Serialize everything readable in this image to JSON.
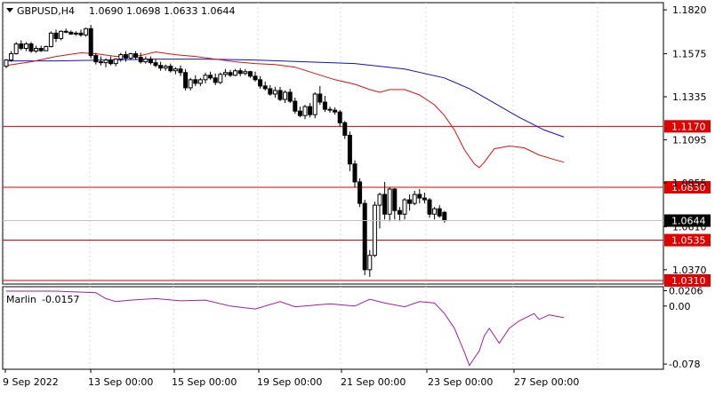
{
  "header": {
    "symbol": "GBPUSD,H4",
    "ohlc": "1.0690 1.0698 1.0633 1.0644"
  },
  "price_axis": {
    "ticks": [
      "1.1820",
      "1.1575",
      "1.1335",
      "1.1095",
      "1.0855",
      "1.0610",
      "1.0370"
    ],
    "current_price": "1.0644",
    "levels": [
      {
        "label": "1.1170",
        "value": 1.117
      },
      {
        "label": "1.0830",
        "value": 1.083
      },
      {
        "label": "1.0535",
        "value": 1.0535
      },
      {
        "label": "1.0310",
        "value": 1.031
      }
    ]
  },
  "indicator": {
    "name": "Marlin",
    "value": "-0.0157",
    "ticks": [
      "0.0206",
      "0.00",
      "-0.078"
    ]
  },
  "time_axis": {
    "labels": [
      "9 Sep 2022",
      "13 Sep 00:00",
      "15 Sep 00:00",
      "19 Sep 00:00",
      "21 Sep 00:00",
      "23 Sep 00:00",
      "27 Sep 00:00"
    ]
  },
  "colors": {
    "level_line": "#e00000",
    "fast_ma": "#e01010",
    "slow_ma": "#1010d0",
    "oscillator": "#a020a0",
    "grid": "#d8d8d8"
  },
  "chart_data": {
    "type": "candlestick",
    "ylim": [
      1.029,
      1.186
    ],
    "candles": [
      [
        1.1505,
        1.1545,
        1.1495,
        1.154
      ],
      [
        1.154,
        1.159,
        1.153,
        1.1575
      ],
      [
        1.1575,
        1.164,
        1.157,
        1.163
      ],
      [
        1.163,
        1.165,
        1.1595,
        1.1605
      ],
      [
        1.1605,
        1.164,
        1.159,
        1.163
      ],
      [
        1.163,
        1.164,
        1.158,
        1.159
      ],
      [
        1.159,
        1.162,
        1.158,
        1.1605
      ],
      [
        1.1605,
        1.162,
        1.1585,
        1.1592
      ],
      [
        1.1592,
        1.162,
        1.159,
        1.1615
      ],
      [
        1.1615,
        1.17,
        1.161,
        1.169
      ],
      [
        1.169,
        1.171,
        1.164,
        1.166
      ],
      [
        1.166,
        1.1705,
        1.165,
        1.17
      ],
      [
        1.17,
        1.1715,
        1.169,
        1.1695
      ],
      [
        1.1695,
        1.1705,
        1.168,
        1.1685
      ],
      [
        1.1685,
        1.17,
        1.1675,
        1.169
      ],
      [
        1.169,
        1.171,
        1.167,
        1.168
      ],
      [
        1.168,
        1.172,
        1.167,
        1.1715
      ],
      [
        1.1715,
        1.1735,
        1.155,
        1.1565
      ],
      [
        1.1565,
        1.158,
        1.1515,
        1.153
      ],
      [
        1.153,
        1.156,
        1.151,
        1.1525
      ],
      [
        1.1525,
        1.155,
        1.15,
        1.154
      ],
      [
        1.154,
        1.156,
        1.151,
        1.152
      ],
      [
        1.152,
        1.155,
        1.1505,
        1.1545
      ],
      [
        1.1545,
        1.158,
        1.153,
        1.157
      ],
      [
        1.157,
        1.159,
        1.153,
        1.155
      ],
      [
        1.155,
        1.158,
        1.154,
        1.1575
      ],
      [
        1.1575,
        1.159,
        1.154,
        1.1555
      ],
      [
        1.1555,
        1.158,
        1.152,
        1.153
      ],
      [
        1.153,
        1.156,
        1.152,
        1.1545
      ],
      [
        1.1545,
        1.156,
        1.1515,
        1.1525
      ],
      [
        1.1525,
        1.1545,
        1.15,
        1.151
      ],
      [
        1.151,
        1.153,
        1.148,
        1.1495
      ],
      [
        1.1495,
        1.1515,
        1.148,
        1.1505
      ],
      [
        1.1505,
        1.152,
        1.147,
        1.148
      ],
      [
        1.148,
        1.15,
        1.146,
        1.149
      ],
      [
        1.149,
        1.151,
        1.145,
        1.147
      ],
      [
        1.147,
        1.149,
        1.137,
        1.1385
      ],
      [
        1.1385,
        1.144,
        1.137,
        1.143
      ],
      [
        1.143,
        1.1455,
        1.1395,
        1.141
      ],
      [
        1.141,
        1.144,
        1.1395,
        1.143
      ],
      [
        1.143,
        1.147,
        1.141,
        1.1455
      ],
      [
        1.1455,
        1.1475,
        1.143,
        1.144
      ],
      [
        1.144,
        1.1465,
        1.14,
        1.1415
      ],
      [
        1.1415,
        1.147,
        1.1405,
        1.146
      ],
      [
        1.146,
        1.149,
        1.1445,
        1.147
      ],
      [
        1.147,
        1.1485,
        1.1445,
        1.1455
      ],
      [
        1.1455,
        1.149,
        1.145,
        1.148
      ],
      [
        1.148,
        1.1495,
        1.145,
        1.1465
      ],
      [
        1.1465,
        1.149,
        1.1455,
        1.1475
      ],
      [
        1.1475,
        1.148,
        1.144,
        1.145
      ],
      [
        1.145,
        1.1475,
        1.142,
        1.143
      ],
      [
        1.143,
        1.145,
        1.138,
        1.1395
      ],
      [
        1.1395,
        1.142,
        1.137,
        1.138
      ],
      [
        1.138,
        1.14,
        1.134,
        1.135
      ],
      [
        1.135,
        1.139,
        1.133,
        1.137
      ],
      [
        1.137,
        1.139,
        1.131,
        1.132
      ],
      [
        1.132,
        1.137,
        1.13,
        1.136
      ],
      [
        1.136,
        1.138,
        1.13,
        1.131
      ],
      [
        1.131,
        1.133,
        1.124,
        1.1255
      ],
      [
        1.1255,
        1.128,
        1.122,
        1.123
      ],
      [
        1.123,
        1.129,
        1.121,
        1.128
      ],
      [
        1.128,
        1.13,
        1.122,
        1.1235
      ],
      [
        1.1235,
        1.136,
        1.1215,
        1.135
      ],
      [
        1.135,
        1.1395,
        1.129,
        1.1305
      ],
      [
        1.1305,
        1.134,
        1.125,
        1.1265
      ],
      [
        1.1265,
        1.128,
        1.1245,
        1.126
      ],
      [
        1.126,
        1.1275,
        1.1235,
        1.125
      ],
      [
        1.125,
        1.126,
        1.117,
        1.119
      ],
      [
        1.119,
        1.12,
        1.11,
        1.112
      ],
      [
        1.112,
        1.114,
        1.092,
        1.096
      ],
      [
        1.096,
        1.098,
        1.083,
        1.086
      ],
      [
        1.086,
        1.088,
        1.072,
        1.074
      ],
      [
        1.074,
        1.076,
        1.034,
        1.037
      ],
      [
        1.037,
        1.048,
        1.033,
        1.045
      ],
      [
        1.045,
        1.075,
        1.044,
        1.073
      ],
      [
        1.073,
        1.08,
        1.06,
        1.079
      ],
      [
        1.079,
        1.086,
        1.065,
        1.068
      ],
      [
        1.068,
        1.083,
        1.064,
        1.082
      ],
      [
        1.082,
        1.0825,
        1.065,
        1.07
      ],
      [
        1.07,
        1.072,
        1.064,
        1.068
      ],
      [
        1.068,
        1.077,
        1.065,
        1.076
      ],
      [
        1.076,
        1.079,
        1.07,
        1.074
      ],
      [
        1.074,
        1.081,
        1.073,
        1.079
      ],
      [
        1.079,
        1.082,
        1.074,
        1.077
      ],
      [
        1.077,
        1.08,
        1.074,
        1.076
      ],
      [
        1.076,
        1.077,
        1.066,
        1.068
      ],
      [
        1.068,
        1.072,
        1.065,
        1.071
      ],
      [
        1.071,
        1.073,
        1.066,
        1.067
      ],
      [
        1.069,
        1.0698,
        1.0633,
        1.0644
      ]
    ],
    "fast_ma": [
      [
        0,
        1.151
      ],
      [
        5,
        1.153
      ],
      [
        10,
        1.156
      ],
      [
        15,
        1.158
      ],
      [
        18,
        1.1575
      ],
      [
        22,
        1.156
      ],
      [
        27,
        1.1565
      ],
      [
        30,
        1.1585
      ],
      [
        34,
        1.157
      ],
      [
        38,
        1.156
      ],
      [
        42,
        1.1545
      ],
      [
        46,
        1.153
      ],
      [
        50,
        1.152
      ],
      [
        54,
        1.1515
      ],
      [
        58,
        1.15
      ],
      [
        62,
        1.1465
      ],
      [
        66,
        1.143
      ],
      [
        70,
        1.1405
      ],
      [
        73,
        1.1375
      ],
      [
        75,
        1.136
      ],
      [
        77,
        1.1375
      ],
      [
        80,
        1.1375
      ],
      [
        83,
        1.1345
      ],
      [
        86,
        1.129
      ],
      [
        88,
        1.123
      ],
      [
        90,
        1.115
      ],
      [
        92,
        1.104
      ],
      [
        94,
        1.096
      ],
      [
        95,
        1.094
      ],
      [
        96,
        1.097
      ],
      [
        98,
        1.1045
      ],
      [
        101,
        1.106
      ],
      [
        104,
        1.105
      ],
      [
        107,
        1.101
      ],
      [
        110,
        1.0985
      ],
      [
        112,
        1.097
      ]
    ],
    "slow_ma": [
      [
        0,
        1.1535
      ],
      [
        10,
        1.1535
      ],
      [
        20,
        1.154
      ],
      [
        30,
        1.1545
      ],
      [
        40,
        1.1545
      ],
      [
        50,
        1.154
      ],
      [
        60,
        1.153
      ],
      [
        70,
        1.152
      ],
      [
        80,
        1.149
      ],
      [
        88,
        1.144
      ],
      [
        93,
        1.138
      ],
      [
        98,
        1.13
      ],
      [
        103,
        1.122
      ],
      [
        108,
        1.115
      ],
      [
        112,
        1.111
      ]
    ],
    "oscillator": {
      "ylim": [
        -0.085,
        0.026
      ],
      "values": [
        [
          0,
          0.02
        ],
        [
          10,
          0.02
        ],
        [
          18,
          0.018
        ],
        [
          20,
          0.01
        ],
        [
          22,
          0.006
        ],
        [
          25,
          0.008
        ],
        [
          30,
          0.01
        ],
        [
          35,
          0.007
        ],
        [
          40,
          0.008
        ],
        [
          45,
          0.0
        ],
        [
          50,
          -0.004
        ],
        [
          55,
          0.006
        ],
        [
          58,
          -0.001
        ],
        [
          60,
          0.0
        ],
        [
          65,
          0.003
        ],
        [
          70,
          0.0
        ],
        [
          73,
          0.009
        ],
        [
          76,
          0.004
        ],
        [
          80,
          -0.001
        ],
        [
          83,
          0.006
        ],
        [
          86,
          0.004
        ],
        [
          88,
          -0.01
        ],
        [
          90,
          -0.03
        ],
        [
          92,
          -0.062
        ],
        [
          93,
          -0.08
        ],
        [
          95,
          -0.06
        ],
        [
          96,
          -0.04
        ],
        [
          97,
          -0.03
        ],
        [
          99,
          -0.05
        ],
        [
          101,
          -0.03
        ],
        [
          103,
          -0.02
        ],
        [
          106,
          -0.01
        ],
        [
          107,
          -0.018
        ],
        [
          109,
          -0.012
        ],
        [
          112,
          -0.0157
        ]
      ]
    }
  }
}
